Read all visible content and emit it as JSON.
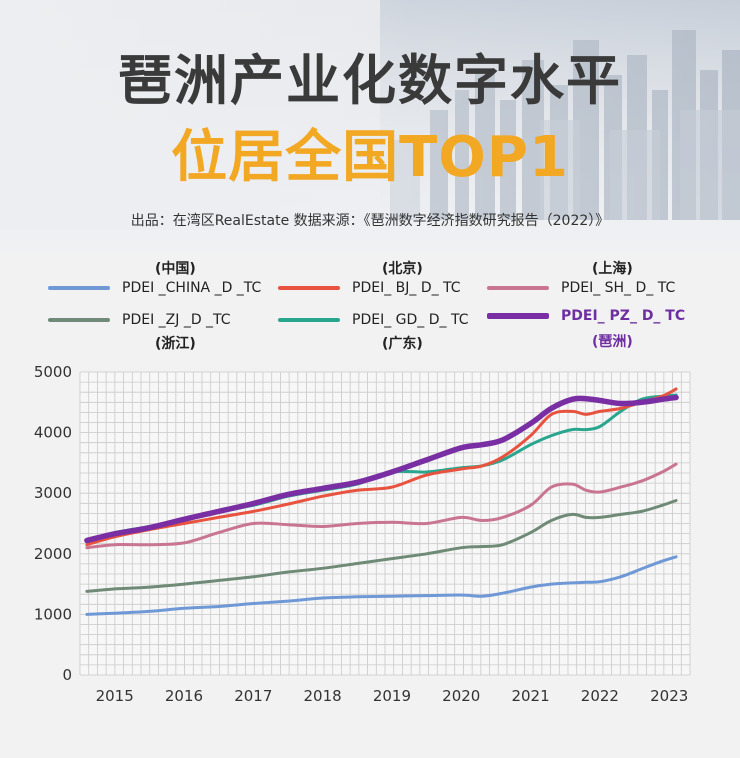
{
  "header": {
    "title_line1": "琶洲产业化数字水平",
    "title_line2": "位居全国TOP1",
    "source": "出品：在湾区RealEstate  数据来源：《琶洲数字经济指数研究报告（2022）》"
  },
  "legend": {
    "city_china": "(中国)",
    "city_bj": "(北京)",
    "city_sh": "(上海)",
    "city_zj": "(浙江)",
    "city_gd": "(广东)",
    "city_pz": "(琶洲)"
  },
  "colors": {
    "china": "#6f98d6",
    "bj": "#e8533f",
    "sh": "#c97592",
    "zj": "#6f8a77",
    "gd": "#2aa58e",
    "pz": "#7a2ea3",
    "title": "#3a3a3a",
    "accent": "#f2a823"
  },
  "chart_data": {
    "type": "line",
    "title": "",
    "xlabel": "",
    "ylabel": "",
    "x": [
      2014.6,
      2015.0,
      2015.5,
      2016.0,
      2016.5,
      2017.0,
      2017.5,
      2018.0,
      2018.5,
      2019.0,
      2019.5,
      2020.0,
      2020.3,
      2020.6,
      2021.0,
      2021.3,
      2021.6,
      2021.8,
      2022.0,
      2022.3,
      2022.6,
      2022.9,
      2023.1
    ],
    "x_tick_labels": [
      "2015",
      "2016",
      "2017",
      "2018",
      "2019",
      "2020",
      "2021",
      "2022",
      "2023"
    ],
    "x_ticks": [
      2015,
      2016,
      2017,
      2018,
      2019,
      2020,
      2021,
      2022,
      2023
    ],
    "xlim": [
      2014.5,
      2023.3
    ],
    "y_tick_labels": [
      "0",
      "1000",
      "2000",
      "3000",
      "4000",
      "5000"
    ],
    "y_ticks": [
      0,
      1000,
      2000,
      3000,
      4000,
      5000
    ],
    "ylim": [
      0,
      5000
    ],
    "grid": true,
    "series": [
      {
        "key": "china",
        "name": "PDEI _CHINA _D _TC",
        "values": [
          1000,
          1020,
          1050,
          1100,
          1130,
          1180,
          1220,
          1270,
          1290,
          1300,
          1310,
          1320,
          1300,
          1350,
          1450,
          1500,
          1520,
          1530,
          1540,
          1620,
          1750,
          1880,
          1950
        ]
      },
      {
        "key": "bj",
        "name": "PDEI_ BJ_ D_ TC",
        "values": [
          2150,
          2280,
          2400,
          2500,
          2600,
          2700,
          2820,
          2950,
          3050,
          3100,
          3300,
          3400,
          3450,
          3600,
          3950,
          4300,
          4350,
          4300,
          4350,
          4400,
          4500,
          4600,
          4720
        ]
      },
      {
        "key": "sh",
        "name": "PDEI_ SH_ D_ TC",
        "values": [
          2100,
          2150,
          2150,
          2180,
          2350,
          2500,
          2480,
          2450,
          2500,
          2520,
          2500,
          2600,
          2550,
          2600,
          2800,
          3100,
          3150,
          3050,
          3020,
          3100,
          3200,
          3350,
          3480
        ]
      },
      {
        "key": "zj",
        "name": "PDEI _ZJ _D _TC",
        "values": [
          1380,
          1420,
          1450,
          1500,
          1560,
          1620,
          1700,
          1760,
          1840,
          1920,
          2000,
          2100,
          2120,
          2150,
          2350,
          2550,
          2650,
          2600,
          2600,
          2650,
          2700,
          2800,
          2880
        ]
      },
      {
        "key": "gd",
        "name": "PDEI_ GD_ D_ TC",
        "values": [
          2200,
          2350,
          2450,
          2580,
          2700,
          2800,
          2950,
          3050,
          3150,
          3350,
          3350,
          3420,
          3450,
          3550,
          3800,
          3950,
          4050,
          4050,
          4100,
          4350,
          4550,
          4600,
          4620
        ]
      },
      {
        "key": "pz",
        "name": "PDEI_ PZ_ D_ TC",
        "values": [
          2220,
          2330,
          2430,
          2570,
          2700,
          2830,
          2980,
          3080,
          3180,
          3350,
          3550,
          3750,
          3800,
          3880,
          4150,
          4400,
          4550,
          4560,
          4530,
          4480,
          4500,
          4550,
          4580
        ]
      }
    ]
  }
}
